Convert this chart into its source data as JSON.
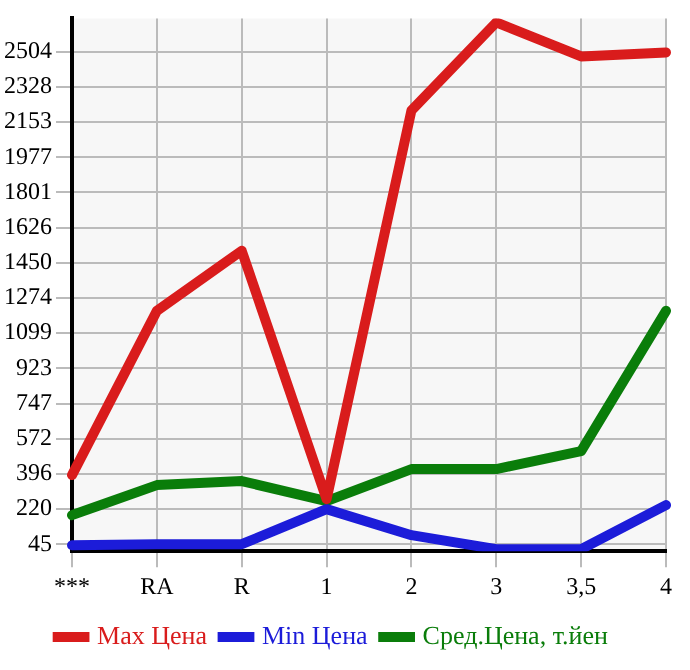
{
  "chart_data": {
    "type": "line",
    "categories": [
      "***",
      "RA",
      "R",
      "1",
      "2",
      "3",
      "3,5",
      "4"
    ],
    "series": [
      {
        "name": "Max Цена",
        "color": "#d91c1c",
        "values": [
          390,
          1210,
          1510,
          270,
          2210,
          2650,
          2480,
          2500
        ]
      },
      {
        "name": "Min Цена",
        "color": "#1c1cd9",
        "values": [
          40,
          45,
          45,
          220,
          90,
          20,
          20,
          240
        ]
      },
      {
        "name": "Сред.Цена, т.йен",
        "color": "#0a7d0a",
        "values": [
          190,
          340,
          360,
          260,
          420,
          420,
          510,
          1210
        ]
      }
    ],
    "ylim": [
      10,
      2670
    ],
    "yticks": [
      45,
      220,
      396,
      572,
      747,
      923,
      1099,
      1274,
      1450,
      1626,
      1801,
      1977,
      2153,
      2328,
      2504
    ],
    "grid": true,
    "legend": "bottom",
    "marker": "none",
    "line_style": "solid"
  }
}
